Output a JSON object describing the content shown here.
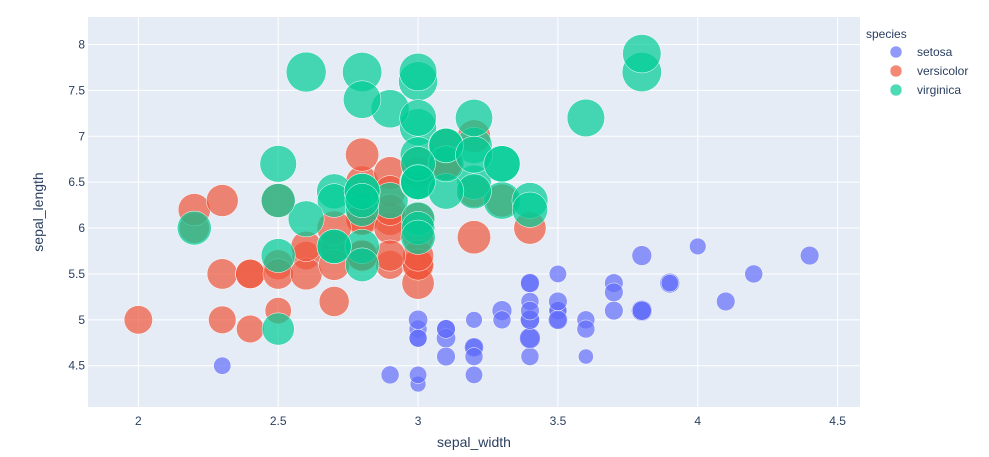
{
  "chart_data": {
    "type": "scatter",
    "xlabel": "sepal_width",
    "ylabel": "sepal_length",
    "xlim": [
      1.82,
      4.58
    ],
    "ylim": [
      4.05,
      8.3
    ],
    "xticks": [
      "2",
      "2.5",
      "3",
      "3.5",
      "4",
      "4.5"
    ],
    "yticks": [
      "4.5",
      "5",
      "5.5",
      "6",
      "6.5",
      "7",
      "7.5",
      "8"
    ],
    "grid": true,
    "legend": {
      "title": "species",
      "placement": "right"
    },
    "size_field": "petal_length",
    "colors": {
      "setosa": "#636efa",
      "versicolor": "#ef553b",
      "virginica": "#00cc96",
      "plot_bg": "#e5ecf6"
    },
    "series": [
      {
        "name": "setosa",
        "x": [
          3.5,
          3.0,
          3.2,
          3.1,
          3.6,
          3.9,
          3.4,
          3.4,
          2.9,
          3.1,
          3.7,
          3.4,
          3.0,
          3.0,
          4.0,
          4.4,
          3.9,
          3.5,
          3.8,
          3.8,
          3.4,
          3.7,
          3.6,
          3.3,
          3.4,
          3.0,
          3.4,
          3.5,
          3.4,
          3.2,
          3.1,
          3.4,
          4.1,
          4.2,
          3.1,
          3.2,
          3.5,
          3.6,
          3.0,
          3.4,
          3.5,
          2.3,
          3.2,
          3.5,
          3.8,
          3.0,
          3.8,
          3.2,
          3.7,
          3.3
        ],
        "y": [
          5.1,
          4.9,
          4.7,
          4.6,
          5.0,
          5.4,
          4.6,
          5.0,
          4.4,
          4.9,
          5.4,
          4.8,
          4.8,
          4.3,
          5.8,
          5.7,
          5.4,
          5.1,
          5.7,
          5.1,
          5.4,
          5.1,
          4.6,
          5.1,
          4.8,
          5.0,
          5.0,
          5.2,
          5.2,
          4.7,
          4.8,
          5.4,
          5.2,
          5.5,
          4.9,
          5.0,
          5.5,
          4.9,
          4.4,
          5.1,
          5.0,
          4.5,
          4.4,
          5.0,
          5.1,
          4.8,
          5.1,
          4.6,
          5.3,
          5.0
        ],
        "size": [
          1.4,
          1.4,
          1.3,
          1.5,
          1.4,
          1.7,
          1.4,
          1.5,
          1.4,
          1.5,
          1.5,
          1.6,
          1.4,
          1.1,
          1.2,
          1.5,
          1.3,
          1.4,
          1.7,
          1.5,
          1.7,
          1.5,
          1.0,
          1.7,
          1.9,
          1.6,
          1.6,
          1.5,
          1.4,
          1.6,
          1.6,
          1.5,
          1.5,
          1.4,
          1.5,
          1.2,
          1.3,
          1.4,
          1.3,
          1.5,
          1.3,
          1.3,
          1.3,
          1.6,
          1.9,
          1.4,
          1.6,
          1.4,
          1.5,
          1.4
        ]
      },
      {
        "name": "versicolor",
        "x": [
          3.2,
          3.2,
          3.1,
          2.3,
          2.8,
          2.8,
          3.3,
          2.4,
          2.9,
          2.7,
          2.0,
          3.0,
          2.2,
          2.9,
          2.9,
          3.1,
          3.0,
          2.7,
          2.2,
          2.5,
          3.2,
          2.8,
          2.5,
          2.8,
          2.9,
          3.0,
          2.8,
          3.0,
          2.9,
          2.6,
          2.4,
          2.4,
          2.7,
          2.7,
          3.0,
          3.4,
          3.1,
          2.3,
          3.0,
          2.5,
          2.6,
          3.0,
          2.6,
          2.3,
          2.7,
          3.0,
          2.9,
          2.9,
          2.5,
          2.8
        ],
        "y": [
          7.0,
          6.4,
          6.9,
          5.5,
          6.5,
          5.7,
          6.3,
          4.9,
          6.6,
          5.2,
          5.0,
          5.9,
          6.0,
          6.1,
          5.6,
          6.7,
          5.6,
          5.8,
          6.2,
          5.6,
          5.9,
          6.1,
          6.3,
          6.1,
          6.4,
          6.6,
          6.8,
          6.7,
          6.0,
          5.7,
          5.5,
          5.5,
          5.8,
          6.0,
          5.4,
          6.0,
          6.7,
          6.3,
          5.6,
          5.5,
          5.5,
          6.1,
          5.8,
          5.0,
          5.6,
          5.7,
          5.7,
          6.2,
          5.1,
          5.7
        ],
        "size": [
          4.7,
          4.5,
          4.9,
          4.0,
          4.6,
          4.5,
          4.7,
          3.3,
          4.6,
          3.9,
          3.5,
          4.2,
          4.0,
          4.7,
          3.6,
          4.4,
          4.5,
          4.1,
          4.5,
          3.9,
          4.8,
          4.0,
          4.9,
          4.7,
          4.3,
          4.4,
          4.8,
          5.0,
          4.5,
          3.5,
          3.8,
          3.7,
          3.9,
          5.1,
          4.5,
          4.5,
          4.7,
          4.4,
          4.1,
          4.0,
          4.4,
          4.6,
          4.0,
          3.3,
          4.2,
          4.2,
          4.2,
          4.3,
          3.0,
          4.1
        ]
      },
      {
        "name": "virginica",
        "x": [
          3.3,
          2.7,
          3.0,
          2.9,
          3.0,
          3.0,
          2.5,
          2.9,
          2.5,
          3.6,
          3.2,
          2.7,
          3.0,
          2.5,
          2.8,
          3.2,
          3.0,
          3.8,
          2.6,
          2.2,
          3.2,
          2.8,
          2.8,
          2.7,
          3.3,
          3.2,
          2.8,
          3.0,
          2.8,
          3.0,
          2.8,
          3.8,
          2.8,
          2.8,
          2.6,
          3.0,
          3.4,
          3.1,
          3.0,
          3.1,
          3.1,
          3.1,
          2.7,
          3.2,
          3.3,
          3.0,
          2.5,
          3.0,
          3.4,
          3.0
        ],
        "y": [
          6.3,
          5.8,
          7.1,
          6.3,
          6.5,
          7.6,
          4.9,
          7.3,
          6.7,
          7.2,
          6.5,
          6.4,
          6.8,
          5.7,
          5.8,
          6.4,
          6.5,
          7.7,
          7.7,
          6.0,
          6.9,
          5.6,
          7.7,
          6.3,
          6.7,
          7.2,
          6.2,
          6.1,
          6.4,
          7.2,
          7.4,
          7.9,
          6.4,
          6.3,
          6.1,
          7.7,
          6.3,
          6.4,
          6.0,
          6.9,
          6.7,
          6.9,
          5.8,
          6.8,
          6.7,
          6.7,
          6.3,
          6.5,
          6.2,
          5.9
        ],
        "size": [
          6.0,
          5.1,
          5.9,
          5.6,
          5.8,
          6.6,
          4.5,
          6.3,
          5.8,
          6.1,
          5.1,
          5.3,
          5.5,
          5.0,
          5.1,
          5.3,
          5.5,
          6.7,
          6.9,
          5.0,
          5.7,
          4.9,
          6.7,
          4.9,
          5.7,
          6.0,
          4.8,
          4.9,
          5.6,
          5.8,
          6.1,
          6.4,
          5.6,
          5.1,
          5.6,
          6.1,
          5.6,
          5.5,
          4.8,
          5.4,
          5.6,
          5.1,
          5.1,
          5.9,
          5.7,
          5.2,
          5.0,
          5.2,
          5.4,
          5.1
        ]
      }
    ]
  }
}
